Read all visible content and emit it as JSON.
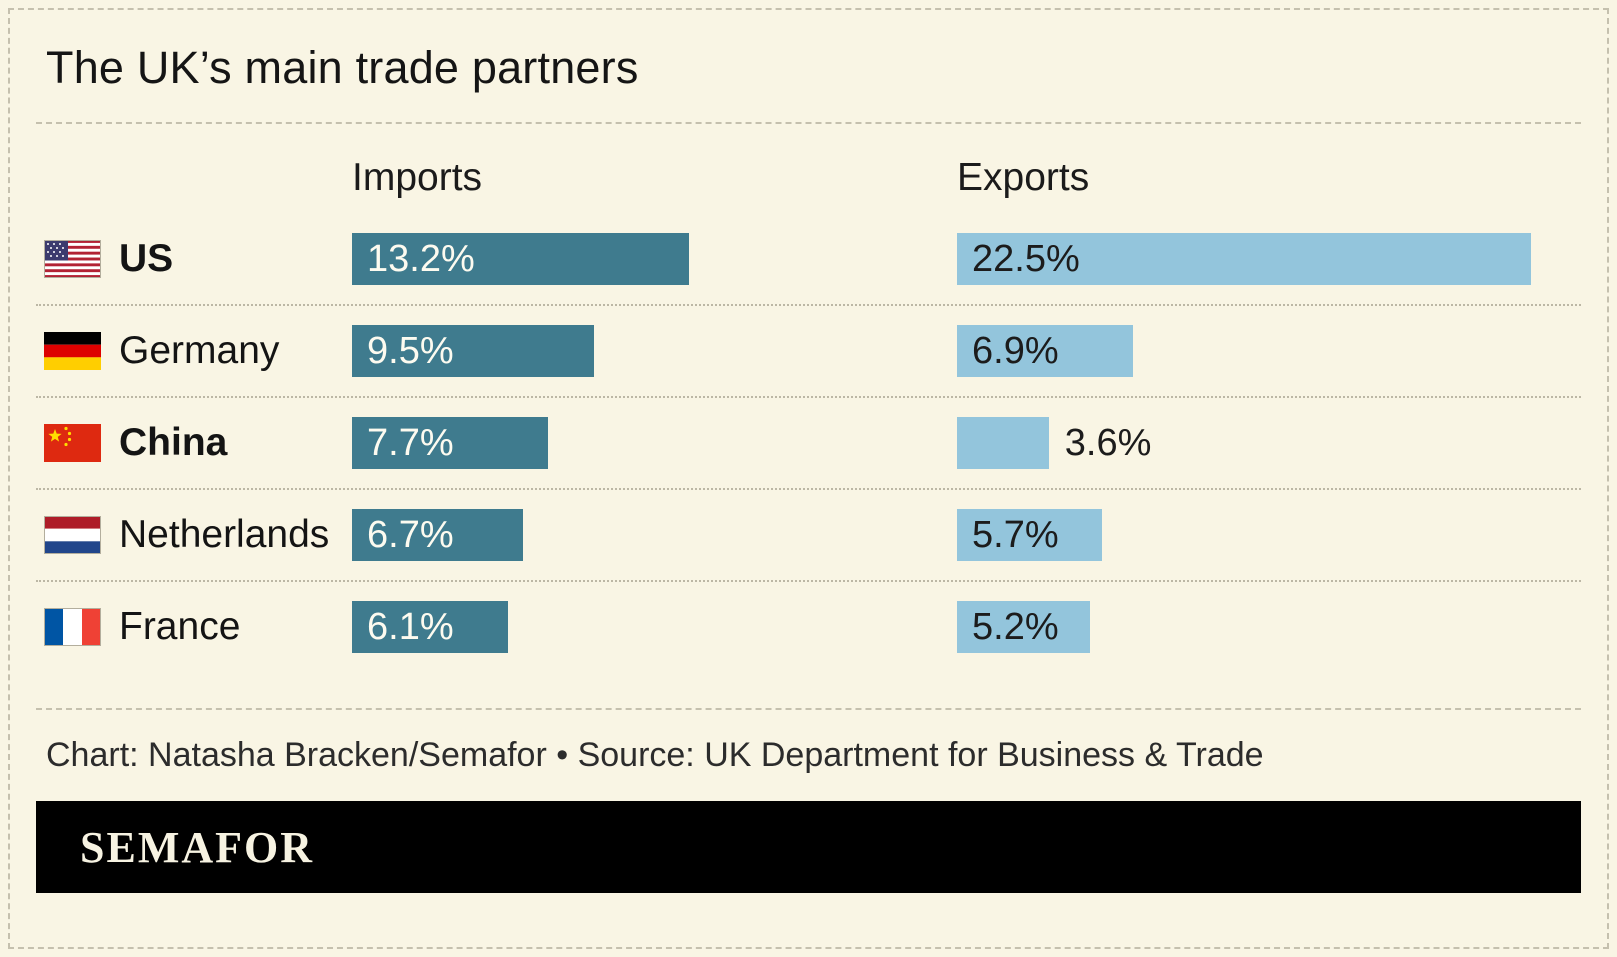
{
  "title": "The UK’s main trade partners",
  "columns": {
    "imports": "Imports",
    "exports": "Exports"
  },
  "chart_data": {
    "type": "bar",
    "title": "The UK’s main trade partners",
    "categories": [
      "US",
      "Germany",
      "China",
      "Netherlands",
      "France"
    ],
    "series": [
      {
        "name": "Imports",
        "values": [
          13.2,
          9.5,
          7.7,
          6.7,
          6.1
        ]
      },
      {
        "name": "Exports",
        "values": [
          22.5,
          6.9,
          3.6,
          5.7,
          5.2
        ]
      }
    ],
    "value_suffix": "%",
    "xlim": [
      0,
      22.5
    ],
    "legend_position": "column-headers",
    "grid": false,
    "bold_categories": [
      "US",
      "China"
    ],
    "flags": [
      "us",
      "de",
      "cn",
      "nl",
      "fr"
    ],
    "colors": {
      "imports_bar": "#3f7b8e",
      "exports_bar": "#93c5dc"
    },
    "label_outside_threshold": 4
  },
  "footer": {
    "caption": "Chart: Natasha Bracken/Semafor • Source: UK Department for Business & Trade",
    "logo": "SEMAFOR"
  }
}
